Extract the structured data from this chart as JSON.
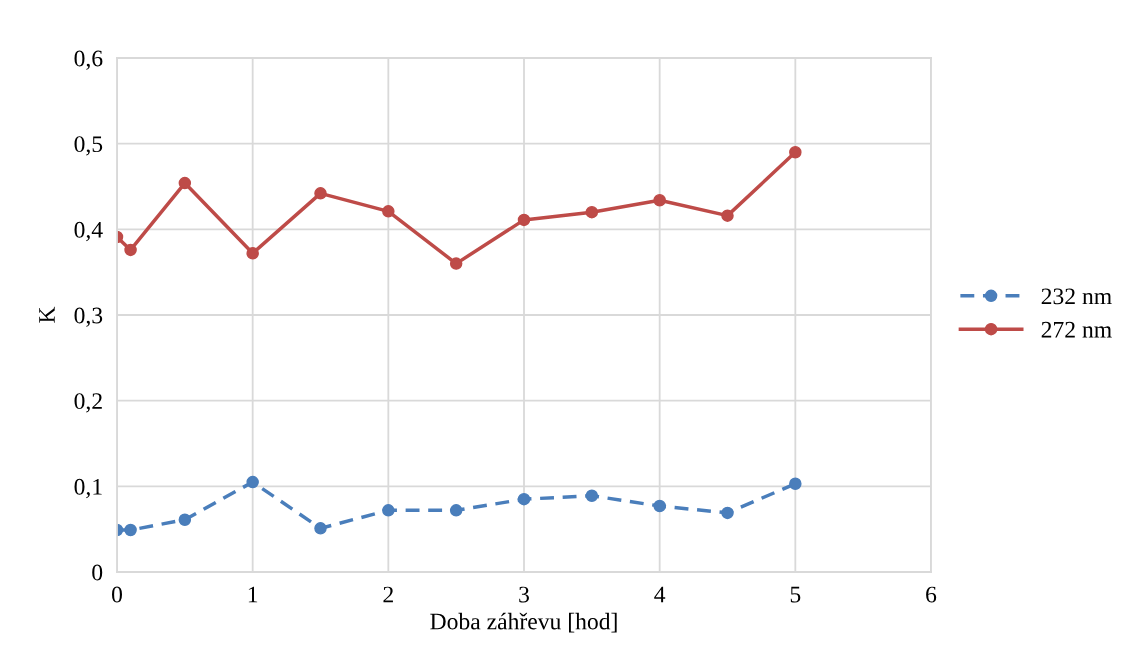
{
  "chart_data": {
    "type": "line",
    "xlabel": "Doba záhřevu [hod]",
    "ylabel": "K",
    "x": [
      0,
      0.1,
      0.5,
      1,
      1.5,
      2,
      2.5,
      3,
      3.5,
      4,
      4.5,
      5
    ],
    "series": [
      {
        "name": "232 nm",
        "color": "#4a7ebb",
        "line_style": "dashed",
        "values": [
          0.049,
          0.049,
          0.061,
          0.105,
          0.051,
          0.072,
          0.072,
          0.085,
          0.089,
          0.077,
          0.069,
          0.103
        ]
      },
      {
        "name": "272 nm",
        "color": "#be4b48",
        "line_style": "solid",
        "values": [
          0.391,
          0.376,
          0.454,
          0.372,
          0.442,
          0.421,
          0.36,
          0.411,
          0.42,
          0.434,
          0.416,
          0.49
        ]
      }
    ],
    "xlim": [
      0,
      6
    ],
    "xticks": [
      0,
      1,
      2,
      3,
      4,
      5,
      6
    ],
    "ylim": [
      0,
      0.6
    ],
    "yticks": [
      {
        "value": 0,
        "label": "0"
      },
      {
        "value": 0.1,
        "label": "0,1"
      },
      {
        "value": 0.2,
        "label": "0,2"
      },
      {
        "value": 0.3,
        "label": "0,3"
      },
      {
        "value": 0.4,
        "label": "0,4"
      },
      {
        "value": 0.5,
        "label": "0,5"
      },
      {
        "value": 0.6,
        "label": "0,6"
      }
    ],
    "grid": true,
    "legend": "right",
    "marker": "circle"
  }
}
